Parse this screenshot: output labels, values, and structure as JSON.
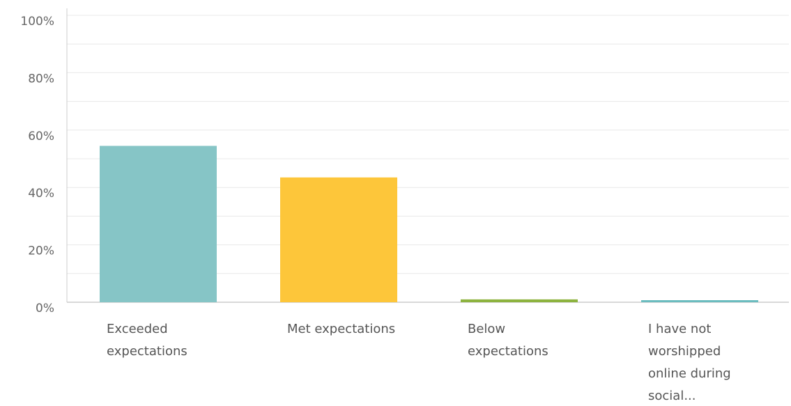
{
  "chart_data": {
    "type": "bar",
    "categories": [
      [
        "Exceeded",
        "expectations"
      ],
      [
        "Met expectations"
      ],
      [
        "Below",
        "expectations"
      ],
      [
        "I have not",
        "worshipped",
        "online during",
        "social..."
      ]
    ],
    "values": [
      54.5,
      43.5,
      1.0,
      0.5
    ],
    "bar_colors": [
      "#86c5c6",
      "#fdc63a",
      "#8db33f",
      "#6bbcbf"
    ],
    "y_ticks": [
      0,
      20,
      40,
      60,
      80,
      100
    ],
    "y_tick_labels": [
      "0%",
      "20%",
      "40%",
      "60%",
      "80%",
      "100%"
    ],
    "ylim": [
      0,
      100
    ],
    "grid": true,
    "gridline_color": "#e8e8e8",
    "axis_color": "#cccccc"
  }
}
